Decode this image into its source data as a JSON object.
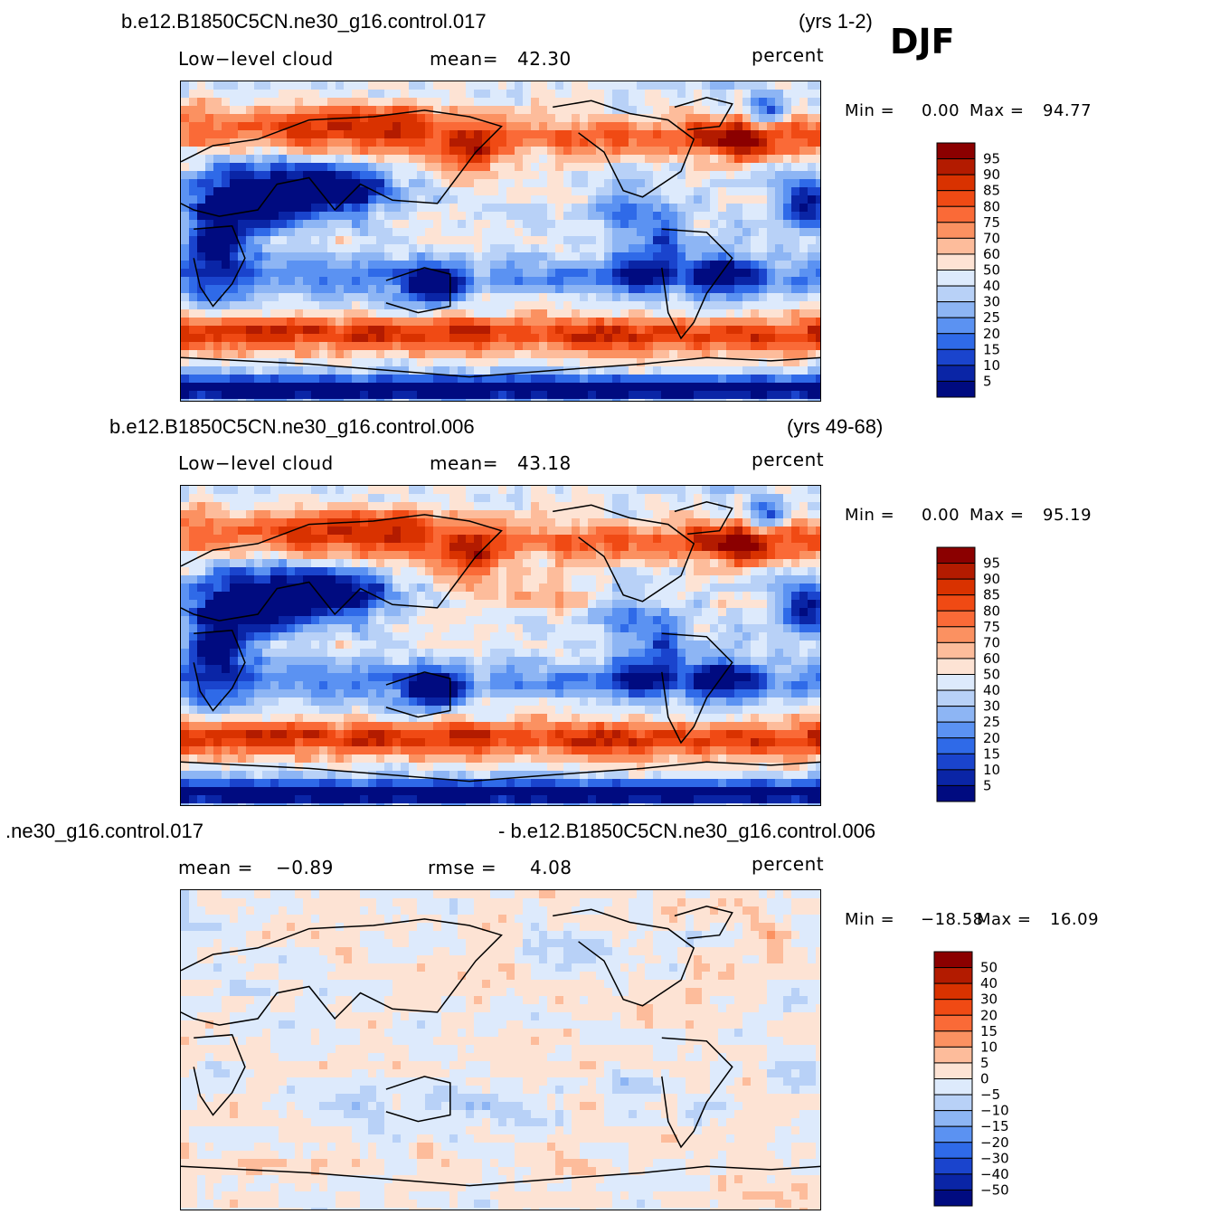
{
  "season": "DJF",
  "panels": [
    {
      "case_left": "b.e12.B1850C5CN.ne30_g16.control.017",
      "case_right": "(yrs 1-2)",
      "field": "Low−level cloud",
      "stat1_label": "mean=",
      "stat1_value": "42.30",
      "stat2_label": "",
      "stat2_value": "",
      "units": "percent",
      "min_label": "Min =",
      "min_value": "0.00",
      "max_label": "Max =",
      "max_value": "94.77",
      "kind": "abs"
    },
    {
      "case_left": "b.e12.B1850C5CN.ne30_g16.control.006",
      "case_right": "(yrs 49-68)",
      "field": "Low−level cloud",
      "stat1_label": "mean=",
      "stat1_value": "43.18",
      "stat2_label": "",
      "stat2_value": "",
      "units": "percent",
      "min_label": "Min =",
      "min_value": "0.00",
      "max_label": "Max =",
      "max_value": "95.19",
      "kind": "abs"
    },
    {
      "case_left": ".ne30_g16.control.017",
      "case_right": "- b.e12.B1850C5CN.ne30_g16.control.006",
      "field": "",
      "stat1_label": "mean =",
      "stat1_value": "−0.89",
      "stat2_label": "rmse =",
      "stat2_value": "4.08",
      "units": "percent",
      "min_label": "Min =",
      "min_value": "−18.58",
      "max_label": "Max =",
      "max_value": "16.09",
      "kind": "diff"
    }
  ],
  "colorbars": {
    "abs_labels": [
      "95",
      "90",
      "85",
      "80",
      "75",
      "70",
      "60",
      "50",
      "40",
      "30",
      "25",
      "20",
      "15",
      "10",
      "5"
    ],
    "diff_labels": [
      "50",
      "40",
      "30",
      "20",
      "15",
      "10",
      "5",
      "0",
      "−5",
      "−10",
      "−15",
      "−20",
      "−30",
      "−40",
      "−50"
    ],
    "colors": [
      "#8b0000",
      "#b31b00",
      "#d93200",
      "#f04a14",
      "#fa6a37",
      "#fb9161",
      "#fdbc9b",
      "#fde3d4",
      "#ddeafc",
      "#b8d1f7",
      "#8db5f4",
      "#5b92f2",
      "#2f6ae8",
      "#1a44cd",
      "#0a25a6",
      "#000b80"
    ]
  },
  "chart_data": [
    {
      "type": "heatmap",
      "title": "b.e12.B1850C5CN.ne30_g16.control.017 (yrs 1-2) DJF",
      "variable": "Low-level cloud",
      "units": "percent",
      "mean": 42.3,
      "min": 0.0,
      "max": 94.77,
      "levels": [
        5,
        10,
        15,
        20,
        25,
        30,
        40,
        50,
        60,
        70,
        75,
        80,
        85,
        90,
        95
      ]
    },
    {
      "type": "heatmap",
      "title": "b.e12.B1850C5CN.ne30_g16.control.006 (yrs 49-68)",
      "variable": "Low-level cloud",
      "units": "percent",
      "mean": 43.18,
      "min": 0.0,
      "max": 95.19,
      "levels": [
        5,
        10,
        15,
        20,
        25,
        30,
        40,
        50,
        60,
        70,
        75,
        80,
        85,
        90,
        95
      ]
    },
    {
      "type": "heatmap",
      "title": ".ne30_g16.control.017 - b.e12.B1850C5CN.ne30_g16.control.006",
      "units": "percent",
      "mean": -0.89,
      "rmse": 4.08,
      "min": -18.58,
      "max": 16.09,
      "levels": [
        -50,
        -40,
        -30,
        -20,
        -15,
        -10,
        -5,
        0,
        5,
        10,
        15,
        20,
        30,
        40,
        50
      ]
    }
  ]
}
